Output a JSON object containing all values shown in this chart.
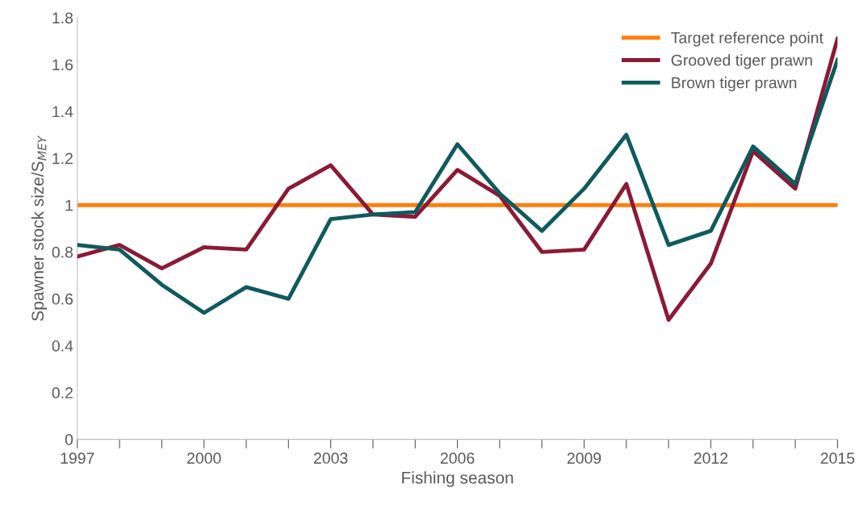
{
  "chart_data": {
    "type": "line",
    "xlabel": "Fishing season",
    "ylabel": "Spawner stock size/S$_{MEY}$",
    "x": [
      1997,
      1998,
      1999,
      2000,
      2001,
      2002,
      2003,
      2004,
      2005,
      2006,
      2007,
      2008,
      2009,
      2010,
      2011,
      2012,
      2013,
      2014,
      2015
    ],
    "series": [
      {
        "name": "Grooved tiger prawn",
        "color": "#8b1a35",
        "values": [
          0.78,
          0.83,
          0.73,
          0.82,
          0.81,
          1.07,
          1.17,
          0.96,
          0.95,
          1.15,
          1.04,
          0.8,
          0.81,
          1.09,
          0.51,
          0.75,
          1.23,
          1.07,
          1.71
        ]
      },
      {
        "name": "Brown tiger prawn",
        "color": "#0f5a5e",
        "values": [
          0.83,
          0.81,
          0.66,
          0.54,
          0.65,
          0.6,
          0.94,
          0.96,
          0.97,
          1.26,
          1.05,
          0.89,
          1.07,
          1.3,
          0.83,
          0.89,
          1.25,
          1.09,
          1.62
        ]
      }
    ],
    "ref_lines": [
      {
        "axis": "y",
        "value": 1,
        "label": "Target reference point",
        "color": "#ff7f0e",
        "line_style": "solid"
      }
    ],
    "xlim": [
      1997,
      2015
    ],
    "xticks": [
      1997,
      {
        "value": 1998,
        "label": null
      },
      {
        "value": 1999,
        "label": null
      },
      2000,
      {
        "value": 2001,
        "label": null
      },
      {
        "value": 2002,
        "label": null
      },
      2003,
      {
        "value": 2004,
        "label": null
      },
      {
        "value": 2005,
        "label": null
      },
      2006,
      {
        "value": 2007,
        "label": null
      },
      {
        "value": 2008,
        "label": null
      },
      2009,
      {
        "value": 2010,
        "label": null
      },
      {
        "value": 2011,
        "label": null
      },
      2012,
      {
        "value": 2013,
        "label": null
      },
      {
        "value": 2014,
        "label": null
      },
      2015
    ],
    "ylim": [
      0,
      1.8
    ],
    "yticks": [
      0,
      0.2,
      0.4,
      0.6,
      0.8,
      1,
      1.2,
      1.4,
      1.6,
      1.8
    ],
    "grid": false,
    "legend": "top right",
    "marker": "none",
    "line_style": "solid"
  }
}
